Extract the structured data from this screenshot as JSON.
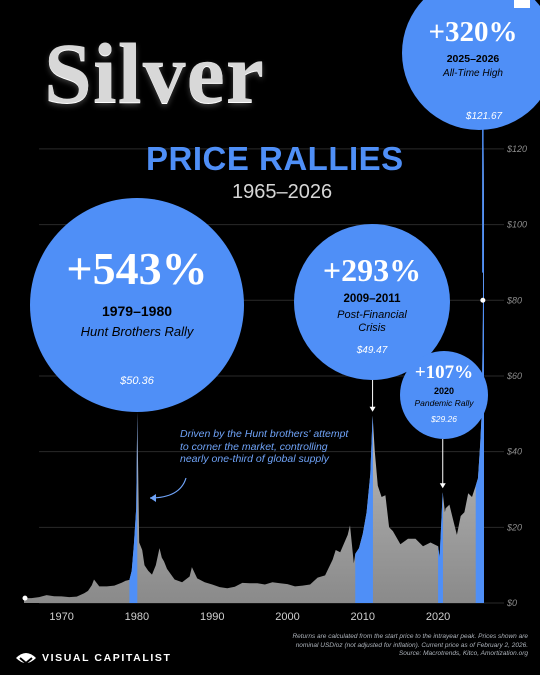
{
  "header": {
    "title": "Silver",
    "subtitle": "PRICE RALLIES",
    "years": "1965–2026"
  },
  "rallies": [
    {
      "id": "hunt",
      "pct": "+543%",
      "period": "1979–1980",
      "event": "Hunt Brothers Rally",
      "peak_label": "$50.36"
    },
    {
      "id": "gfc",
      "pct": "+293%",
      "period": "2009–2011",
      "event_lines": [
        "Post-Financial",
        "Crisis"
      ],
      "peak_label": "$49.47"
    },
    {
      "id": "covid",
      "pct": "+107%",
      "period": "2020",
      "event": "Pandemic Rally",
      "peak_label": "$29.26"
    },
    {
      "id": "ath",
      "pct": "+320%",
      "period": "2025–2026",
      "event": "All-Time High",
      "peak_label": "$121.67"
    }
  ],
  "annotation": [
    "Driven by the Hunt brothers' attempt",
    "to corner the market, controlling",
    "nearly one-third of global supply"
  ],
  "footnote": [
    "Returns are calculated from the start price to the intrayear peak. Prices shown are",
    "nominal USD/oz (not adjusted for inflation). Current price as of February 2, 2026.",
    "Source: Macrotrends, Kitco, Amortization.org"
  ],
  "brand": "VISUAL CAPITALIST",
  "chart_data": {
    "type": "area",
    "ylim": [
      0,
      125
    ],
    "xlim": [
      1965,
      2026.1
    ],
    "y_ticks": [
      0,
      20,
      40,
      60,
      80,
      100,
      120
    ],
    "y_tick_labels": [
      "$0",
      "$20",
      "$40",
      "$60",
      "$80",
      "$100",
      "$120"
    ],
    "x_ticks": [
      1970,
      1980,
      1990,
      2000,
      2010,
      2020
    ],
    "x_tick_labels": [
      "1970",
      "1980",
      "1990",
      "2000",
      "2010",
      "2020"
    ],
    "grid": true,
    "colors": {
      "area": "#e6e6e6",
      "rally": "#4f8ff7",
      "grid": "#2a2a2a",
      "axis_text": "#8c8c8c"
    },
    "rally_windows": [
      [
        1979,
        1980.05
      ],
      [
        2009,
        2011.35
      ],
      [
        2020,
        2020.65
      ],
      [
        2025,
        2026.1
      ]
    ],
    "peaks": [
      {
        "x": 1980.05,
        "y": 50.36,
        "label": "$50.36"
      },
      {
        "x": 2011.3,
        "y": 49.47,
        "label": "$49.47"
      },
      {
        "x": 2020.62,
        "y": 29.26,
        "label": "$29.26"
      },
      {
        "x": 2026.08,
        "y": 121.67,
        "label": "$121.67"
      }
    ],
    "series": [
      {
        "x": [
          1965,
          1966,
          1967,
          1968,
          1969,
          1970,
          1971,
          1972,
          1973,
          1973.5,
          1974,
          1974.3,
          1975,
          1976,
          1977,
          1978,
          1978.5,
          1979,
          1979.3,
          1979.6,
          1979.9,
          1980.05,
          1980.15,
          1980.3,
          1980.5,
          1980.7,
          1981,
          1981.5,
          1982,
          1982.5,
          1983,
          1983.3,
          1983.6,
          1984,
          1985,
          1986,
          1987,
          1987.3,
          1988,
          1989,
          1990,
          1991,
          1992,
          1993,
          1994,
          1995,
          1996,
          1997,
          1998,
          1999,
          2000,
          2001,
          2002,
          2003,
          2004,
          2005,
          2006,
          2006.4,
          2007,
          2008,
          2008.3,
          2008.8,
          2009,
          2009.5,
          2010,
          2010.5,
          2011,
          2011.3,
          2011.6,
          2012,
          2012.5,
          2013,
          2013.5,
          2014,
          2015,
          2016,
          2017,
          2018,
          2019,
          2020,
          2020.2,
          2020.62,
          2020.9,
          2021,
          2021.5,
          2022,
          2022.5,
          2023,
          2023.5,
          2024,
          2024.5,
          2025,
          2025.3,
          2025.6,
          2025.8,
          2025.95,
          2026.08,
          2026.1
        ],
        "y": [
          1.3,
          1.3,
          1.55,
          2.1,
          1.8,
          1.75,
          1.55,
          1.7,
          2.6,
          3.2,
          4.7,
          6.2,
          4.4,
          4.4,
          4.6,
          5.4,
          5.9,
          6.1,
          8.5,
          15.5,
          25,
          50.36,
          36,
          16,
          15,
          14,
          10,
          8.5,
          7.5,
          10,
          14.5,
          12,
          11,
          9,
          6.2,
          5.5,
          7,
          9.5,
          6.5,
          5.5,
          4.9,
          4.2,
          3.9,
          4.3,
          5.3,
          5.2,
          5.2,
          4.9,
          5.5,
          5.2,
          5,
          4.4,
          4.6,
          4.9,
          6.7,
          7.3,
          11.5,
          14,
          13.4,
          18,
          20.5,
          10.5,
          13,
          14.5,
          18.3,
          24,
          34,
          49.47,
          40,
          31,
          28,
          28.5,
          20,
          19,
          15.5,
          17,
          17,
          15,
          16,
          15,
          12,
          29.26,
          24,
          25,
          26,
          22,
          18,
          23,
          24,
          29,
          28,
          31,
          33,
          42,
          50,
          75,
          121.67,
          79
        ]
      }
    ]
  }
}
